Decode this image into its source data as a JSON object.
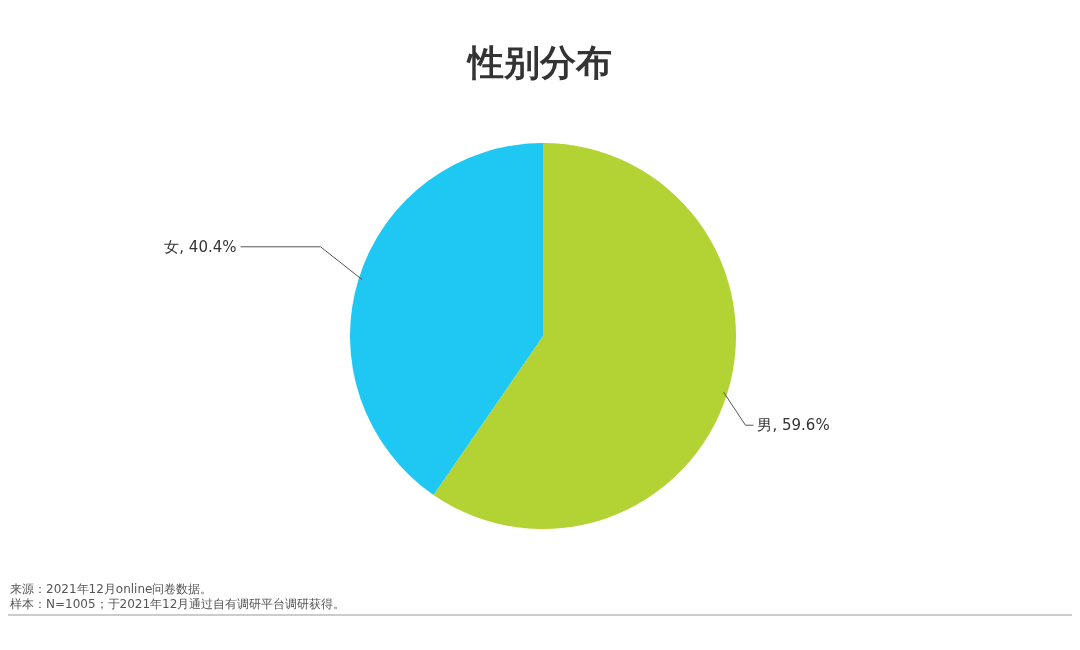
{
  "chart_data": {
    "type": "pie",
    "title": "性别分布",
    "categories": [
      "男",
      "女"
    ],
    "values": [
      59.6,
      40.4
    ],
    "colors": [
      "#b3d334",
      "#1fc8f3"
    ],
    "value_labels": [
      ", 59.6%",
      ", 40.4%"
    ],
    "annotations": [
      "来源：2021年12月online问卷数据。",
      "样本：N=1005；于2021年12月通过自有调研平台调研获得。"
    ]
  }
}
